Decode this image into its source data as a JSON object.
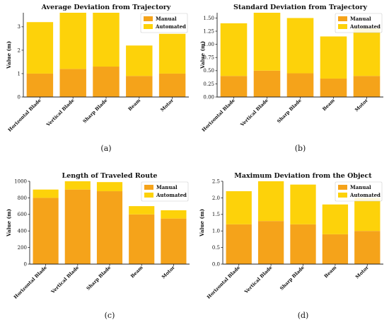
{
  "chart_data": [
    {
      "type": "bar",
      "stacked": true,
      "title": "Average Deviation from Trajectory",
      "ylabel": "Value (m)",
      "xlabel": "",
      "categories": [
        "Horizontal Blade",
        "Vertical Blade",
        "Sharp Blade",
        "Beam",
        "Motor"
      ],
      "series": [
        {
          "name": "Manual",
          "values": [
            1.0,
            1.2,
            1.3,
            0.9,
            1.0
          ],
          "color": "#f5a31a"
        },
        {
          "name": "Automated",
          "values": [
            2.2,
            2.4,
            2.3,
            1.3,
            1.7
          ],
          "color": "#fdd20a"
        }
      ],
      "ylim": [
        0,
        3.6
      ],
      "yticks": [
        0,
        1,
        2,
        3
      ],
      "ytick_labels": [
        "0",
        "1",
        "2",
        "3"
      ],
      "legend": "top-right",
      "grid": false,
      "caption": "(a)"
    },
    {
      "type": "bar",
      "stacked": true,
      "title": "Standard Deviation from Trajectory",
      "ylabel": "Value (m)",
      "xlabel": "",
      "categories": [
        "Horizontal Blade",
        "Vertical Blade",
        "Sharp Blade",
        "Beam",
        "Motor"
      ],
      "series": [
        {
          "name": "Manual",
          "values": [
            0.4,
            0.5,
            0.45,
            0.35,
            0.4
          ],
          "color": "#f5a31a"
        },
        {
          "name": "Automated",
          "values": [
            1.0,
            1.1,
            1.05,
            0.8,
            0.9
          ],
          "color": "#fdd20a"
        }
      ],
      "ylim": [
        0,
        1.6
      ],
      "yticks": [
        0,
        0.25,
        0.5,
        0.75,
        1.0,
        1.25,
        1.5
      ],
      "ytick_labels": [
        "0.00",
        "0.25",
        "0.50",
        "0.75",
        "1.00",
        "1.25",
        "1.50"
      ],
      "legend": "top-right",
      "grid": false,
      "caption": "(b)"
    },
    {
      "type": "bar",
      "stacked": true,
      "title": "Length of Traveled Route",
      "ylabel": "Value (m)",
      "xlabel": "",
      "categories": [
        "Horizontal Blade",
        "Vertical Blade",
        "Sharp Blade",
        "Beam",
        "Motor"
      ],
      "series": [
        {
          "name": "Manual",
          "values": [
            800,
            900,
            880,
            600,
            550
          ],
          "color": "#f5a31a"
        },
        {
          "name": "Automated",
          "values": [
            100,
            100,
            110,
            100,
            100
          ],
          "color": "#fdd20a"
        }
      ],
      "ylim": [
        0,
        1000
      ],
      "yticks": [
        0,
        200,
        400,
        600,
        800,
        1000
      ],
      "ytick_labels": [
        "0",
        "200",
        "400",
        "600",
        "800",
        "1000"
      ],
      "legend": "top-right",
      "grid": false,
      "caption": "(c)"
    },
    {
      "type": "bar",
      "stacked": true,
      "title": "Maximum Deviation from the Object",
      "ylabel": "Value (m)",
      "xlabel": "",
      "categories": [
        "Horizontal Blade",
        "Vertical Blade",
        "Sharp Blade",
        "Beam",
        "Motor"
      ],
      "series": [
        {
          "name": "Manual",
          "values": [
            1.2,
            1.3,
            1.2,
            0.9,
            1.0
          ],
          "color": "#f5a31a"
        },
        {
          "name": "Automated",
          "values": [
            1.0,
            1.2,
            1.2,
            0.9,
            1.0
          ],
          "color": "#fdd20a"
        }
      ],
      "ylim": [
        0,
        2.5
      ],
      "yticks": [
        0,
        0.5,
        1.0,
        1.5,
        2.0,
        2.5
      ],
      "ytick_labels": [
        "0.0",
        "0.5",
        "1.0",
        "1.5",
        "2.0",
        "2.5"
      ],
      "legend": "top-right",
      "grid": false,
      "caption": "(d)"
    }
  ]
}
